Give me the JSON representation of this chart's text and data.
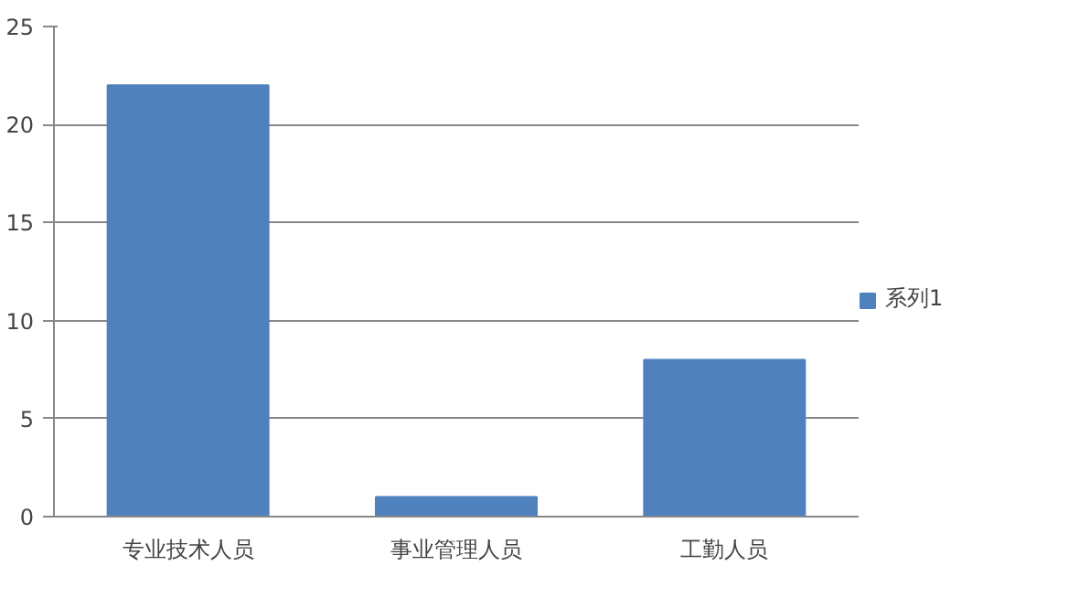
{
  "chart_data": {
    "type": "bar",
    "categories": [
      "专业技术人员",
      "事业管理人员",
      "工勤人员"
    ],
    "series": [
      {
        "name": "系列1",
        "color": "#4f81bd",
        "values": [
          22,
          1,
          8
        ]
      }
    ],
    "ylim": [
      0,
      25
    ],
    "yticks": [
      0,
      5,
      10,
      15,
      20,
      25
    ],
    "grid": "y",
    "legend": "right"
  }
}
